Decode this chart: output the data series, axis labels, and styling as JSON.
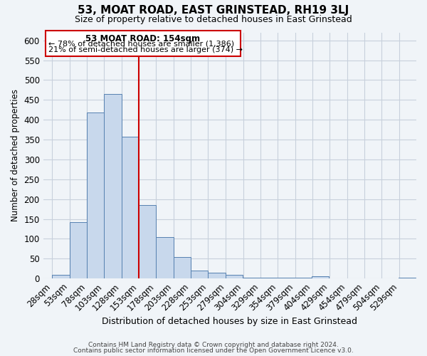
{
  "title": "53, MOAT ROAD, EAST GRINSTEAD, RH19 3LJ",
  "subtitle": "Size of property relative to detached houses in East Grinstead",
  "xlabel": "Distribution of detached houses by size in East Grinstead",
  "ylabel": "Number of detached properties",
  "bar_centers": [
    40.5,
    65.5,
    90.5,
    115.5,
    140.5,
    165.5,
    190.5,
    215.5,
    240.5,
    265.5,
    290.5,
    315.5,
    340.5,
    365.5,
    390.5,
    415.5,
    440.5,
    465.5,
    490.5,
    515.5,
    540.5
  ],
  "bar_heights": [
    10,
    143,
    418,
    465,
    357,
    185,
    105,
    55,
    20,
    15,
    10,
    3,
    3,
    3,
    3,
    5,
    0,
    0,
    0,
    0,
    3
  ],
  "bin_width": 25,
  "x_tick_labels": [
    "28sqm",
    "53sqm",
    "78sqm",
    "103sqm",
    "128sqm",
    "153sqm",
    "178sqm",
    "203sqm",
    "228sqm",
    "253sqm",
    "279sqm",
    "304sqm",
    "329sqm",
    "354sqm",
    "379sqm",
    "404sqm",
    "429sqm",
    "454sqm",
    "479sqm",
    "504sqm",
    "529sqm"
  ],
  "x_tick_positions": [
    28,
    53,
    78,
    103,
    128,
    153,
    178,
    203,
    228,
    253,
    279,
    304,
    329,
    354,
    379,
    404,
    429,
    454,
    479,
    504,
    529
  ],
  "ylim": [
    0,
    620
  ],
  "xlim": [
    15,
    554
  ],
  "bar_color": "#c8d8ec",
  "bar_edge_color": "#5580b0",
  "grid_color": "#c8d0dc",
  "property_line_x": 153,
  "property_line_color": "#cc0000",
  "annotation_text_line1": "53 MOAT ROAD: 154sqm",
  "annotation_text_line2": "← 78% of detached houses are smaller (1,386)",
  "annotation_text_line3": "21% of semi-detached houses are larger (374) →",
  "annotation_box_color": "#cc0000",
  "footer_line1": "Contains HM Land Registry data © Crown copyright and database right 2024.",
  "footer_line2": "Contains public sector information licensed under the Open Government Licence v3.0.",
  "background_color": "#f0f4f8",
  "yticks": [
    0,
    50,
    100,
    150,
    200,
    250,
    300,
    350,
    400,
    450,
    500,
    550,
    600
  ]
}
